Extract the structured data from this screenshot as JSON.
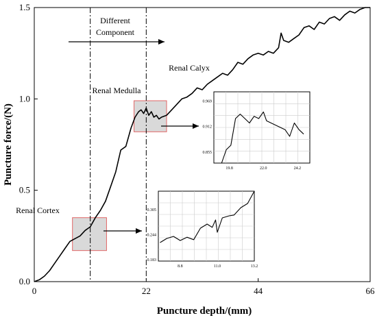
{
  "chart_data": {
    "type": "line",
    "title": "",
    "xlabel": "Puncture depth/(mm)",
    "ylabel": "Puncture force/(N)",
    "xlim": [
      0,
      66
    ],
    "ylim": [
      0,
      1.5
    ],
    "x_ticks": [
      "0",
      "22",
      "44",
      "66"
    ],
    "y_ticks": [
      "0.0",
      "0.5",
      "1.0",
      "1.5"
    ],
    "grid": false,
    "series": [
      {
        "name": "",
        "color": "#000000",
        "x": [
          0,
          1,
          2,
          3,
          4,
          5,
          6,
          7,
          8,
          9,
          10,
          11,
          12,
          13,
          14,
          15,
          16,
          17,
          18,
          19,
          19.8,
          20.5,
          21,
          21.5,
          22,
          22.5,
          23,
          23.5,
          24,
          24.5,
          25,
          26,
          27,
          28,
          29,
          30,
          31,
          32,
          33,
          34,
          35,
          36,
          37,
          38,
          39,
          40,
          41,
          42,
          43,
          44,
          45,
          46,
          47,
          48,
          48.5,
          49,
          50,
          51,
          52,
          53,
          54,
          55,
          56,
          57,
          58,
          59,
          60,
          61,
          62,
          63,
          64,
          65,
          66
        ],
        "y": [
          0.0,
          0.01,
          0.03,
          0.06,
          0.1,
          0.14,
          0.18,
          0.22,
          0.235,
          0.25,
          0.28,
          0.3,
          0.35,
          0.39,
          0.44,
          0.52,
          0.6,
          0.72,
          0.74,
          0.84,
          0.9,
          0.93,
          0.94,
          0.92,
          0.95,
          0.91,
          0.93,
          0.9,
          0.91,
          0.89,
          0.9,
          0.91,
          0.94,
          0.97,
          1.0,
          1.01,
          1.03,
          1.06,
          1.05,
          1.08,
          1.1,
          1.12,
          1.14,
          1.13,
          1.16,
          1.2,
          1.19,
          1.22,
          1.24,
          1.25,
          1.24,
          1.26,
          1.25,
          1.28,
          1.36,
          1.32,
          1.31,
          1.33,
          1.35,
          1.39,
          1.4,
          1.38,
          1.42,
          1.41,
          1.44,
          1.45,
          1.43,
          1.46,
          1.48,
          1.47,
          1.49,
          1.5,
          1.5
        ]
      }
    ],
    "vertical_lines_x": [
      11,
      22
    ],
    "annotations": {
      "different_component_line1": "Different",
      "different_component_line2": "Component",
      "renal_calyx": "Renal Calyx",
      "renal_medulla": "Renal Medulla",
      "renal_cortex": "Renal Cortex"
    },
    "highlight_boxes": [
      {
        "name": "cortex-region",
        "x_range": [
          7.5,
          14.2
        ],
        "y_range": [
          0.17,
          0.35
        ]
      },
      {
        "name": "medulla-region",
        "x_range": [
          19.6,
          26
        ],
        "y_range": [
          0.82,
          0.99
        ]
      }
    ],
    "insets": [
      {
        "name": "medulla-inset",
        "x_ticks": [
          "19.8",
          "22.0",
          "24.2"
        ],
        "y_ticks": [
          "0.855",
          "0.912",
          "0.969"
        ],
        "xlim": [
          18.8,
          25
        ],
        "ylim": [
          0.83,
          0.99
        ],
        "x": [
          19.3,
          19.6,
          19.9,
          20.2,
          20.5,
          20.8,
          21.1,
          21.4,
          21.7,
          22.0,
          22.2,
          22.5,
          22.8,
          23.1,
          23.4,
          23.7,
          24.0,
          24.3,
          24.6
        ],
        "y": [
          0.83,
          0.86,
          0.87,
          0.93,
          0.94,
          0.93,
          0.92,
          0.935,
          0.93,
          0.945,
          0.925,
          0.92,
          0.915,
          0.91,
          0.905,
          0.89,
          0.92,
          0.905,
          0.895
        ]
      },
      {
        "name": "cortex-inset",
        "x_ticks": [
          "8.8",
          "11.0",
          "13.2"
        ],
        "y_ticks": [
          "0.183",
          "0.244",
          "0.305"
        ],
        "xlim": [
          7.5,
          13.2
        ],
        "ylim": [
          0.18,
          0.35
        ],
        "x": [
          7.6,
          8.0,
          8.4,
          8.8,
          9.2,
          9.6,
          10.0,
          10.4,
          10.7,
          10.9,
          11.0,
          11.3,
          11.7,
          12.0,
          12.4,
          12.8,
          13.2
        ],
        "y": [
          0.225,
          0.235,
          0.24,
          0.23,
          0.238,
          0.232,
          0.26,
          0.27,
          0.262,
          0.28,
          0.25,
          0.285,
          0.29,
          0.292,
          0.31,
          0.32,
          0.35
        ]
      }
    ]
  }
}
